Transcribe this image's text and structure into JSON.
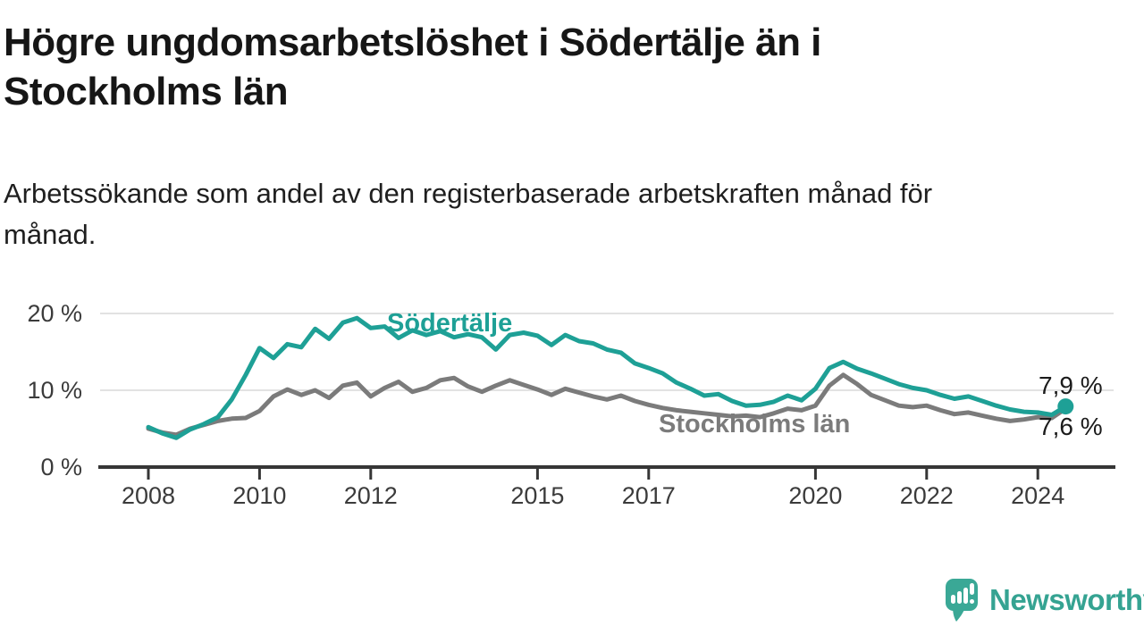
{
  "title": {
    "line1": "Högre ungdomsarbetslöshet i Södertälje än i",
    "line2": "Stockholms län"
  },
  "subtitle": {
    "line1": "Arbetssökande som andel av den registerbaserade arbetskraften månad för",
    "line2": "månad."
  },
  "branding": {
    "name": "Newsworthy",
    "icon": "newsworthy-bubble-chart-icon",
    "color": "#35a392"
  },
  "colors": {
    "background": "#ffffff",
    "title_text": "#161616",
    "axis": "#363636",
    "axis_text": "#3b3b3b",
    "gridline": "#d9d9d9",
    "sodertalje_teal": "#1ea096",
    "stockholm_gray": "#7b7b7b",
    "end_label_text": "#1b1b1b"
  },
  "chart_data": {
    "type": "line",
    "unit": "%",
    "x_start": 2008.0,
    "x_step": 0.25,
    "x_end": 2024.5,
    "ylim": [
      0,
      21.5
    ],
    "grid": "horizontal",
    "legend": "inline-labels",
    "yticks": [
      {
        "value": 0,
        "label": "0 %"
      },
      {
        "value": 10,
        "label": "10 %"
      },
      {
        "value": 20,
        "label": "20 %"
      }
    ],
    "xticks": [
      {
        "year": 2008,
        "label": "2008"
      },
      {
        "year": 2010,
        "label": "2010"
      },
      {
        "year": 2012,
        "label": "2012"
      },
      {
        "year": 2015,
        "label": "2015"
      },
      {
        "year": 2017,
        "label": "2017"
      },
      {
        "year": 2020,
        "label": "2020"
      },
      {
        "year": 2022,
        "label": "2022"
      },
      {
        "year": 2024,
        "label": "2024"
      }
    ],
    "series": [
      {
        "name": "Södertälje",
        "color": "#1ea096",
        "end_label": "7,9 %",
        "end_value": 7.9,
        "values": [
          5.2,
          4.4,
          3.8,
          4.9,
          5.6,
          6.5,
          8.8,
          12.0,
          15.5,
          14.2,
          16.0,
          15.6,
          18.0,
          16.7,
          18.8,
          19.4,
          18.1,
          18.3,
          16.8,
          17.8,
          17.2,
          17.7,
          16.9,
          17.3,
          16.9,
          15.3,
          17.2,
          17.5,
          17.1,
          15.9,
          17.2,
          16.4,
          16.1,
          15.3,
          14.9,
          13.5,
          12.9,
          12.2,
          11.0,
          10.2,
          9.3,
          9.5,
          8.6,
          8.0,
          8.1,
          8.5,
          9.3,
          8.7,
          10.2,
          12.9,
          13.7,
          12.8,
          12.2,
          11.5,
          10.8,
          10.3,
          10.0,
          9.4,
          8.9,
          9.2,
          8.6,
          8.0,
          7.5,
          7.2,
          7.1,
          6.8,
          7.9
        ]
      },
      {
        "name": "Stockholms län",
        "color": "#7b7b7b",
        "end_label": "7,6 %",
        "end_value": 7.6,
        "values": [
          5.0,
          4.5,
          4.2,
          5.0,
          5.5,
          6.0,
          6.3,
          6.4,
          7.3,
          9.2,
          10.1,
          9.4,
          10.0,
          9.0,
          10.6,
          11.0,
          9.2,
          10.3,
          11.1,
          9.8,
          10.3,
          11.3,
          11.6,
          10.5,
          9.8,
          10.6,
          11.3,
          10.7,
          10.1,
          9.4,
          10.2,
          9.7,
          9.2,
          8.8,
          9.3,
          8.6,
          8.1,
          7.7,
          7.4,
          7.2,
          7.0,
          6.8,
          6.6,
          6.7,
          6.5,
          7.0,
          7.6,
          7.4,
          8.0,
          10.6,
          12.0,
          10.8,
          9.4,
          8.7,
          8.0,
          7.8,
          8.0,
          7.4,
          6.9,
          7.1,
          6.7,
          6.3,
          6.0,
          6.2,
          6.5,
          6.4,
          7.6
        ]
      }
    ]
  }
}
